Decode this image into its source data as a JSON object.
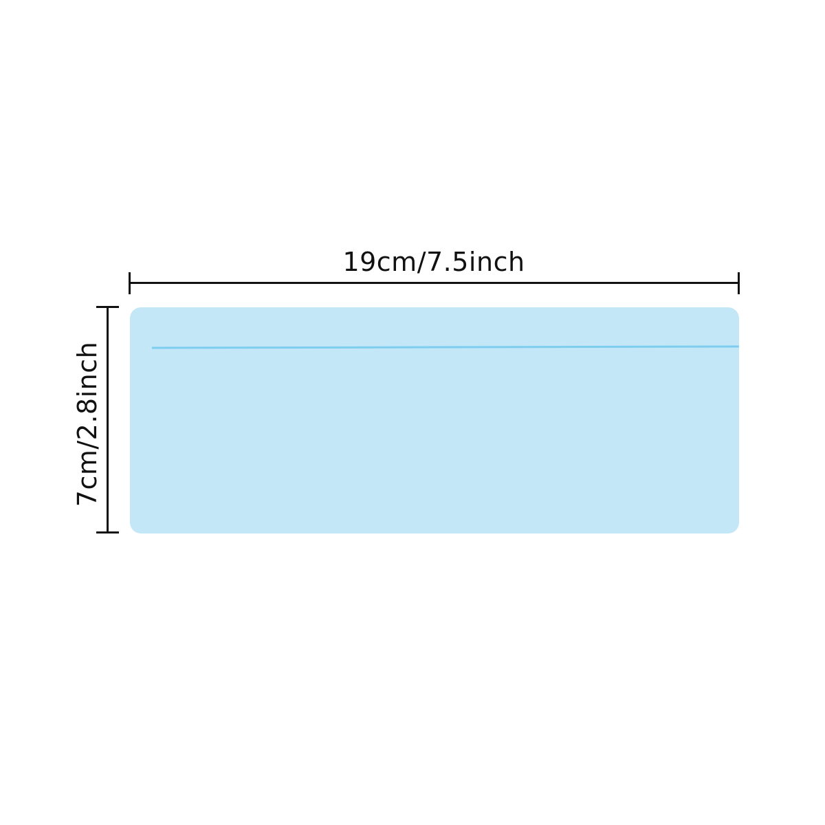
{
  "dimensions": {
    "width_label": "19cm/7.5inch",
    "height_label": "7cm/2.8inch"
  },
  "colors": {
    "sheet_fill": "#c4e7f8",
    "sheet_line": "#7ccdee",
    "dimension_ink": "#111111",
    "background": "#ffffff"
  }
}
